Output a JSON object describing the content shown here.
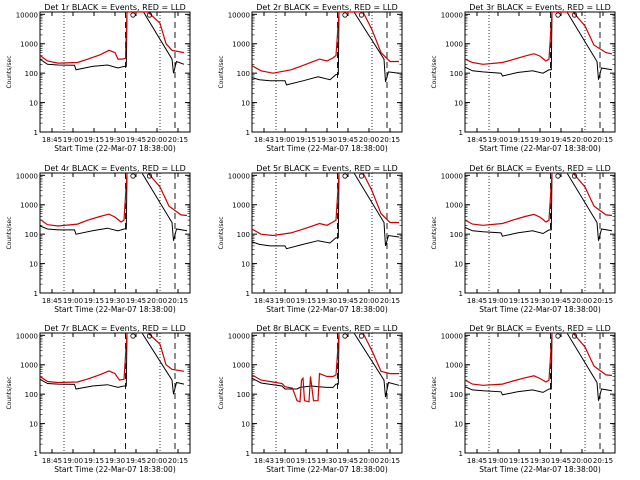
{
  "chart_data": {
    "type": "line",
    "yscale": "log",
    "ylim": [
      1,
      12000
    ],
    "y_ticks": [
      1,
      10,
      100,
      1000,
      10000
    ],
    "y_tick_labels": [
      "1",
      "10",
      "100",
      "1000",
      "10000"
    ],
    "ylabel": "Counts/sec",
    "xlim": [
      0,
      100
    ],
    "x_tick_labels_a": [
      "18:45",
      "19:00",
      "19:15",
      "19:30",
      "19:45",
      "20:00",
      "20:15"
    ],
    "x_tick_labels_b": [
      "18:43",
      "19:00",
      "19:15",
      "19:30",
      "19:45",
      "20:00",
      "20:15"
    ],
    "x_tick_labels_c": [
      "18:45",
      "19:00",
      "19:15",
      "19:30",
      "19:45",
      "20:00",
      "20:15"
    ],
    "xlabel": "Start Time (22-Mar-07 18:38:00)",
    "colors": {
      "black": "#000000",
      "red": "#cc0000"
    },
    "panels": [
      {
        "title": "Det 1r BLACK = Events, RED = LLD",
        "ticks": "a",
        "red": [
          [
            0,
            400
          ],
          [
            5,
            260
          ],
          [
            12,
            220
          ],
          [
            25,
            230
          ],
          [
            32,
            300
          ],
          [
            40,
            420
          ],
          [
            46,
            600
          ],
          [
            50,
            500
          ],
          [
            52,
            300
          ],
          [
            55,
            300
          ],
          [
            57,
            320
          ],
          [
            58,
            12000
          ],
          [
            72,
            12000
          ],
          [
            80,
            5000
          ],
          [
            84,
            1000
          ],
          [
            88,
            600
          ],
          [
            96,
            500
          ]
        ],
        "black": [
          [
            0,
            300
          ],
          [
            5,
            200
          ],
          [
            12,
            190
          ],
          [
            23,
            185
          ],
          [
            24,
            130
          ],
          [
            35,
            170
          ],
          [
            45,
            190
          ],
          [
            52,
            150
          ],
          [
            56,
            170
          ],
          [
            57.5,
            170
          ],
          [
            58,
            12000
          ],
          [
            68,
            12000
          ],
          [
            69,
            12000
          ],
          [
            88,
            300
          ],
          [
            89,
            100
          ],
          [
            91,
            250
          ],
          [
            96,
            200
          ]
        ]
      },
      {
        "title": "Det 2r BLACK = Events, RED = LLD",
        "ticks": "b",
        "red": [
          [
            0,
            180
          ],
          [
            6,
            120
          ],
          [
            14,
            100
          ],
          [
            26,
            130
          ],
          [
            36,
            200
          ],
          [
            45,
            300
          ],
          [
            50,
            260
          ],
          [
            54,
            330
          ],
          [
            56,
            400
          ],
          [
            58,
            12000
          ],
          [
            74,
            12000
          ],
          [
            80,
            3000
          ],
          [
            86,
            500
          ],
          [
            92,
            250
          ],
          [
            98,
            250
          ]
        ],
        "black": [
          [
            0,
            70
          ],
          [
            5,
            60
          ],
          [
            12,
            55
          ],
          [
            22,
            55
          ],
          [
            23,
            40
          ],
          [
            34,
            55
          ],
          [
            44,
            75
          ],
          [
            52,
            60
          ],
          [
            56,
            90
          ],
          [
            57.5,
            90
          ],
          [
            58,
            12000
          ],
          [
            68,
            12000
          ],
          [
            88,
            300
          ],
          [
            89,
            50
          ],
          [
            91,
            110
          ],
          [
            98,
            100
          ]
        ]
      },
      {
        "title": "Det 3r BLACK = Events, RED = LLD",
        "ticks": "a",
        "red": [
          [
            0,
            300
          ],
          [
            5,
            230
          ],
          [
            12,
            200
          ],
          [
            25,
            230
          ],
          [
            32,
            290
          ],
          [
            40,
            380
          ],
          [
            46,
            460
          ],
          [
            50,
            380
          ],
          [
            54,
            260
          ],
          [
            56,
            300
          ],
          [
            58,
            12000
          ],
          [
            72,
            12000
          ],
          [
            80,
            4000
          ],
          [
            86,
            900
          ],
          [
            94,
            500
          ],
          [
            98,
            450
          ]
        ],
        "black": [
          [
            0,
            160
          ],
          [
            5,
            120
          ],
          [
            12,
            110
          ],
          [
            24,
            100
          ],
          [
            25,
            80
          ],
          [
            35,
            105
          ],
          [
            45,
            120
          ],
          [
            52,
            100
          ],
          [
            56,
            130
          ],
          [
            57.5,
            130
          ],
          [
            58,
            12000
          ],
          [
            68,
            12000
          ],
          [
            88,
            250
          ],
          [
            89,
            60
          ],
          [
            91,
            150
          ],
          [
            98,
            130
          ]
        ]
      },
      {
        "title": "Det 4r BLACK = Events, RED = LLD",
        "ticks": "a",
        "red": [
          [
            0,
            320
          ],
          [
            5,
            210
          ],
          [
            12,
            190
          ],
          [
            25,
            220
          ],
          [
            32,
            300
          ],
          [
            40,
            400
          ],
          [
            46,
            480
          ],
          [
            50,
            380
          ],
          [
            54,
            260
          ],
          [
            56,
            300
          ],
          [
            58,
            12000
          ],
          [
            72,
            12000
          ],
          [
            80,
            4000
          ],
          [
            86,
            900
          ],
          [
            94,
            450
          ],
          [
            98,
            430
          ]
        ],
        "black": [
          [
            0,
            190
          ],
          [
            5,
            150
          ],
          [
            12,
            140
          ],
          [
            23,
            140
          ],
          [
            24,
            100
          ],
          [
            35,
            130
          ],
          [
            45,
            160
          ],
          [
            52,
            130
          ],
          [
            56,
            150
          ],
          [
            57.5,
            150
          ],
          [
            58,
            12000
          ],
          [
            68,
            12000
          ],
          [
            88,
            250
          ],
          [
            89,
            60
          ],
          [
            91,
            150
          ],
          [
            98,
            130
          ]
        ]
      },
      {
        "title": "Det 5r BLACK = Events, RED = LLD",
        "ticks": "b",
        "red": [
          [
            0,
            150
          ],
          [
            6,
            100
          ],
          [
            14,
            90
          ],
          [
            26,
            110
          ],
          [
            36,
            160
          ],
          [
            45,
            230
          ],
          [
            50,
            200
          ],
          [
            54,
            260
          ],
          [
            56,
            300
          ],
          [
            58,
            12000
          ],
          [
            74,
            12000
          ],
          [
            80,
            3000
          ],
          [
            86,
            500
          ],
          [
            92,
            250
          ],
          [
            98,
            250
          ]
        ],
        "black": [
          [
            0,
            55
          ],
          [
            5,
            45
          ],
          [
            12,
            40
          ],
          [
            22,
            40
          ],
          [
            23,
            32
          ],
          [
            34,
            45
          ],
          [
            44,
            60
          ],
          [
            52,
            50
          ],
          [
            56,
            75
          ],
          [
            57.5,
            75
          ],
          [
            58,
            12000
          ],
          [
            68,
            12000
          ],
          [
            88,
            250
          ],
          [
            89,
            40
          ],
          [
            91,
            90
          ],
          [
            98,
            80
          ]
        ]
      },
      {
        "title": "Det 6r BLACK = Events, RED = LLD",
        "ticks": "a",
        "red": [
          [
            0,
            300
          ],
          [
            5,
            220
          ],
          [
            12,
            200
          ],
          [
            25,
            230
          ],
          [
            32,
            300
          ],
          [
            40,
            400
          ],
          [
            46,
            470
          ],
          [
            50,
            380
          ],
          [
            54,
            260
          ],
          [
            56,
            300
          ],
          [
            58,
            12000
          ],
          [
            72,
            12000
          ],
          [
            80,
            4000
          ],
          [
            86,
            900
          ],
          [
            94,
            450
          ],
          [
            98,
            430
          ]
        ],
        "black": [
          [
            0,
            170
          ],
          [
            5,
            130
          ],
          [
            12,
            120
          ],
          [
            24,
            110
          ],
          [
            25,
            85
          ],
          [
            35,
            110
          ],
          [
            45,
            130
          ],
          [
            52,
            105
          ],
          [
            56,
            140
          ],
          [
            57.5,
            140
          ],
          [
            58,
            12000
          ],
          [
            68,
            12000
          ],
          [
            88,
            250
          ],
          [
            89,
            60
          ],
          [
            91,
            150
          ],
          [
            98,
            130
          ]
        ]
      },
      {
        "title": "Det 7r BLACK = Events, RED = LLD",
        "ticks": "c",
        "red": [
          [
            0,
            400
          ],
          [
            5,
            270
          ],
          [
            12,
            250
          ],
          [
            25,
            260
          ],
          [
            32,
            330
          ],
          [
            40,
            460
          ],
          [
            46,
            620
          ],
          [
            50,
            500
          ],
          [
            53,
            300
          ],
          [
            56,
            320
          ],
          [
            58,
            12000
          ],
          [
            72,
            12000
          ],
          [
            80,
            5000
          ],
          [
            84,
            1000
          ],
          [
            88,
            700
          ],
          [
            96,
            600
          ]
        ],
        "black": [
          [
            0,
            320
          ],
          [
            5,
            230
          ],
          [
            12,
            220
          ],
          [
            23,
            215
          ],
          [
            24,
            150
          ],
          [
            35,
            190
          ],
          [
            45,
            210
          ],
          [
            52,
            170
          ],
          [
            56,
            190
          ],
          [
            57.5,
            190
          ],
          [
            58,
            12000
          ],
          [
            68,
            12000
          ],
          [
            88,
            300
          ],
          [
            89,
            100
          ],
          [
            91,
            250
          ],
          [
            96,
            220
          ]
        ]
      },
      {
        "title": "Det 8r BLACK = Events, RED = LLD",
        "ticks": "b",
        "red": [
          [
            0,
            450
          ],
          [
            6,
            300
          ],
          [
            14,
            260
          ],
          [
            20,
            230
          ],
          [
            22,
            180
          ],
          [
            27,
            160
          ],
          [
            30,
            60
          ],
          [
            32,
            55
          ],
          [
            33,
            300
          ],
          [
            34,
            350
          ],
          [
            35,
            60
          ],
          [
            38,
            55
          ],
          [
            39,
            400
          ],
          [
            41,
            60
          ],
          [
            44,
            60
          ],
          [
            45,
            500
          ],
          [
            50,
            400
          ],
          [
            54,
            400
          ],
          [
            56,
            450
          ],
          [
            58,
            12000
          ],
          [
            74,
            12000
          ],
          [
            80,
            3000
          ],
          [
            86,
            600
          ],
          [
            92,
            500
          ],
          [
            98,
            500
          ]
        ],
        "black": [
          [
            0,
            350
          ],
          [
            6,
            240
          ],
          [
            14,
            210
          ],
          [
            20,
            190
          ],
          [
            22,
            150
          ],
          [
            30,
            150
          ],
          [
            32,
            170
          ],
          [
            40,
            190
          ],
          [
            44,
            180
          ],
          [
            50,
            170
          ],
          [
            54,
            170
          ],
          [
            56,
            220
          ],
          [
            57.5,
            220
          ],
          [
            58,
            12000
          ],
          [
            68,
            12000
          ],
          [
            88,
            300
          ],
          [
            89,
            80
          ],
          [
            91,
            250
          ],
          [
            98,
            200
          ]
        ]
      },
      {
        "title": "Det 9r BLACK = Events, RED = LLD",
        "ticks": "a",
        "red": [
          [
            0,
            300
          ],
          [
            5,
            220
          ],
          [
            12,
            200
          ],
          [
            25,
            220
          ],
          [
            32,
            280
          ],
          [
            40,
            360
          ],
          [
            46,
            420
          ],
          [
            50,
            340
          ],
          [
            54,
            260
          ],
          [
            56,
            300
          ],
          [
            58,
            12000
          ],
          [
            72,
            12000
          ],
          [
            80,
            4000
          ],
          [
            86,
            900
          ],
          [
            94,
            450
          ],
          [
            98,
            430
          ]
        ],
        "black": [
          [
            0,
            180
          ],
          [
            5,
            140
          ],
          [
            12,
            130
          ],
          [
            24,
            120
          ],
          [
            25,
            95
          ],
          [
            35,
            120
          ],
          [
            45,
            140
          ],
          [
            52,
            115
          ],
          [
            56,
            150
          ],
          [
            57.5,
            150
          ],
          [
            58,
            12000
          ],
          [
            68,
            12000
          ],
          [
            88,
            250
          ],
          [
            89,
            60
          ],
          [
            91,
            150
          ],
          [
            98,
            130
          ]
        ]
      }
    ]
  }
}
